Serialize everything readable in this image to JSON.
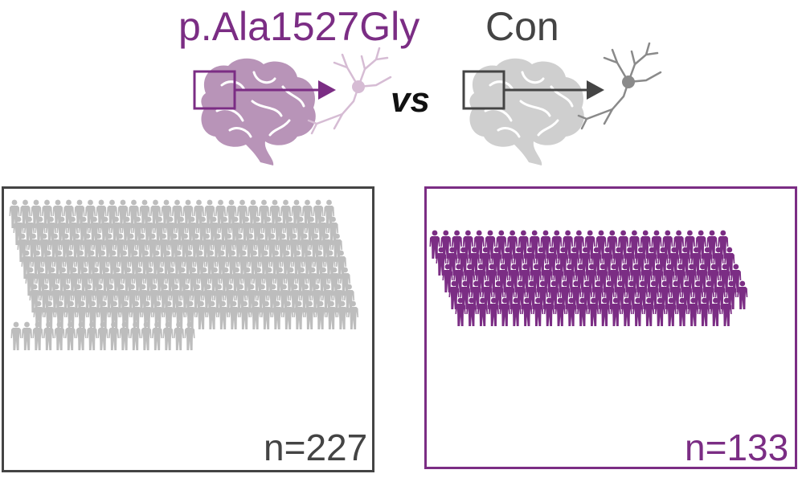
{
  "header": {
    "mutation_label": "p.Ala1527Gly",
    "control_label": "Con",
    "vs_label": "vs"
  },
  "colors": {
    "mutation": "#7b2d84",
    "mutation_light": "#b894b8",
    "mutation_neuron": "#d6bcd4",
    "control": "#444444",
    "control_light": "#cfcfcf",
    "control_neuron": "#8a8a8a",
    "crowd_gray": "#bdbdbd"
  },
  "icons": {
    "brain": "brain-icon",
    "neuron": "neuron-icon",
    "person": "person-icon"
  },
  "groups": {
    "control": {
      "count": 227,
      "count_label": "n=227"
    },
    "mutation": {
      "count": 133,
      "count_label": "n=133"
    }
  }
}
